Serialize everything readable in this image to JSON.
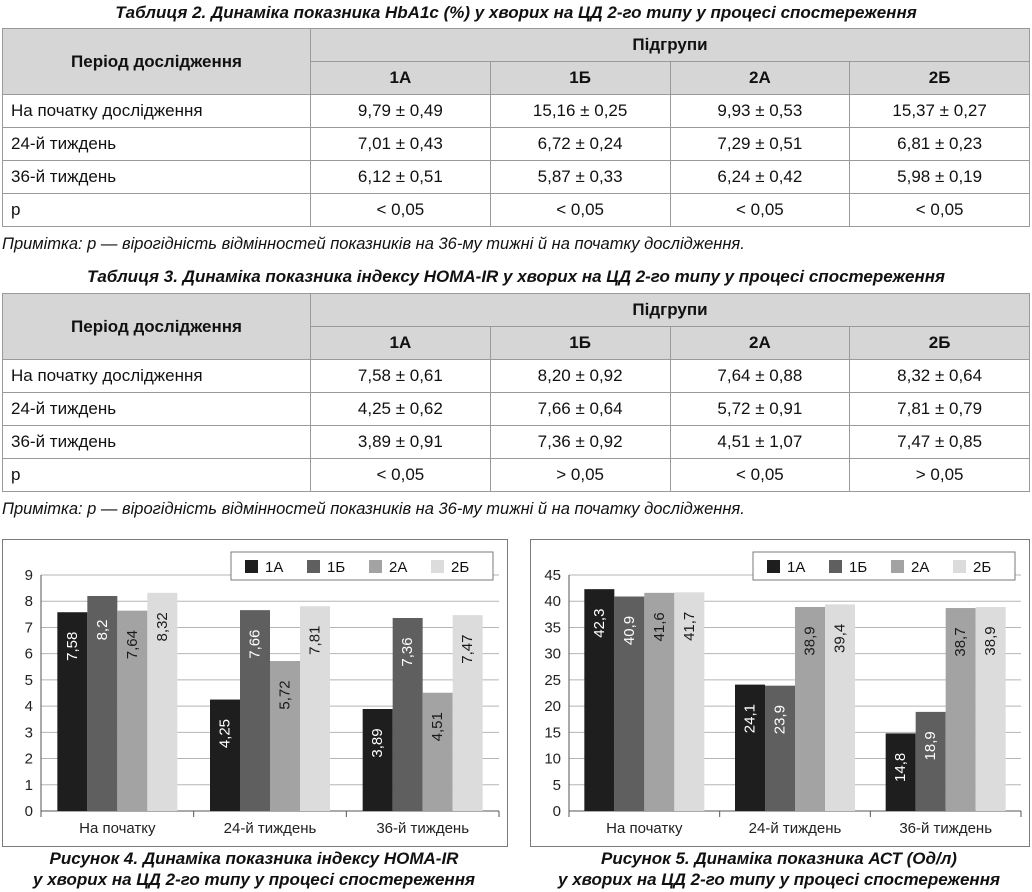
{
  "table2": {
    "caption": "Таблиця 2. Динаміка показника HbA1c (%) у хворих на ЦД 2-го типу у процесі спостереження",
    "period_header": "Період дослідження",
    "group_header": "Підгрупи",
    "columns": [
      "1А",
      "1Б",
      "2А",
      "2Б"
    ],
    "rows": [
      {
        "label": "На початку дослідження",
        "cells": [
          "9,79 ± 0,49",
          "15,16 ± 0,25",
          "9,93 ± 0,53",
          "15,37 ± 0,27"
        ]
      },
      {
        "label": "24-й тиждень",
        "cells": [
          "7,01 ± 0,43",
          "6,72 ± 0,24",
          "7,29 ± 0,51",
          "6,81 ± 0,23"
        ]
      },
      {
        "label": "36-й тиждень",
        "cells": [
          "6,12 ± 0,51",
          "5,87 ± 0,33",
          "6,24 ± 0,42",
          "5,98 ± 0,19"
        ]
      },
      {
        "label": "р",
        "cells": [
          "< 0,05",
          "< 0,05",
          "< 0,05",
          "< 0,05"
        ]
      }
    ],
    "note": "Примітка: р — вірогідність відмінностей показників на 36-му тижні й на початку дослідження."
  },
  "table3": {
    "caption": "Таблиця 3. Динаміка показника індексу HOMA-IR у хворих на ЦД 2-го типу у процесі спостереження",
    "period_header": "Період дослідження",
    "group_header": "Підгрупи",
    "columns": [
      "1А",
      "1Б",
      "2А",
      "2Б"
    ],
    "rows": [
      {
        "label": "На початку дослідження",
        "cells": [
          "7,58 ± 0,61",
          "8,20 ± 0,92",
          "7,64 ± 0,88",
          "8,32 ± 0,64"
        ]
      },
      {
        "label": "24-й тиждень",
        "cells": [
          "4,25 ± 0,62",
          "7,66 ± 0,64",
          "5,72 ± 0,91",
          "7,81 ± 0,79"
        ]
      },
      {
        "label": "36-й тиждень",
        "cells": [
          "3,89 ± 0,91",
          "7,36 ± 0,92",
          "4,51 ± 1,07",
          "7,47 ± 0,85"
        ]
      },
      {
        "label": "р",
        "cells": [
          "< 0,05",
          "> 0,05",
          "< 0,05",
          "> 0,05"
        ]
      }
    ],
    "note": "Примітка: р — вірогідність відмінностей показників на 36-му тижні й на початку дослідження."
  },
  "figure4": {
    "caption_line1": "Рисунок 4. Динаміка показника індексу HOMA-IR",
    "caption_line2": "у хворих на ЦД 2-го типу у процесі спостереження"
  },
  "figure5": {
    "caption_line1": "Рисунок 5. Динаміка показника АСТ (Од/л)",
    "caption_line2": "у хворих на ЦД 2-го типу у процесі спостереження"
  },
  "series_colors": [
    "#1e1e1e",
    "#5f5f5f",
    "#a3a3a3",
    "#dcdcdc"
  ],
  "chart_data": [
    {
      "type": "bar",
      "categories": [
        "На початку",
        "24-й тиждень",
        "36-й тиждень"
      ],
      "series": [
        {
          "name": "1А",
          "values": [
            7.58,
            4.25,
            3.89
          ],
          "labels": [
            "7,58",
            "4,25",
            "3,89"
          ]
        },
        {
          "name": "1Б",
          "values": [
            8.2,
            7.66,
            7.36
          ],
          "labels": [
            "8,2",
            "7,66",
            "7,36"
          ]
        },
        {
          "name": "2А",
          "values": [
            7.64,
            5.72,
            4.51
          ],
          "labels": [
            "7,64",
            "5,72",
            "4,51"
          ]
        },
        {
          "name": "2Б",
          "values": [
            8.32,
            7.81,
            7.47
          ],
          "labels": [
            "8,32",
            "7,81",
            "7,47"
          ]
        }
      ],
      "yticks": [
        "0",
        "1",
        "2",
        "3",
        "4",
        "5",
        "6",
        "7",
        "8",
        "9"
      ],
      "ylim": [
        0,
        9
      ],
      "grid": true,
      "legend": "top-right"
    },
    {
      "type": "bar",
      "categories": [
        "На початку",
        "24-й тиждень",
        "36-й тиждень"
      ],
      "series": [
        {
          "name": "1А",
          "values": [
            42.3,
            24.1,
            14.8
          ],
          "labels": [
            "42,3",
            "24,1",
            "14,8"
          ]
        },
        {
          "name": "1Б",
          "values": [
            40.9,
            23.9,
            18.9
          ],
          "labels": [
            "40,9",
            "23,9",
            "18,9"
          ]
        },
        {
          "name": "2А",
          "values": [
            41.6,
            38.9,
            38.7
          ],
          "labels": [
            "41,6",
            "38,9",
            "38,7"
          ]
        },
        {
          "name": "2Б",
          "values": [
            41.7,
            39.4,
            38.9
          ],
          "labels": [
            "41,7",
            "39,4",
            "38,9"
          ]
        }
      ],
      "yticks": [
        "0",
        "5",
        "10",
        "15",
        "20",
        "25",
        "30",
        "35",
        "40",
        "45"
      ],
      "ylim": [
        0,
        45
      ],
      "grid": true,
      "legend": "top-right"
    }
  ]
}
